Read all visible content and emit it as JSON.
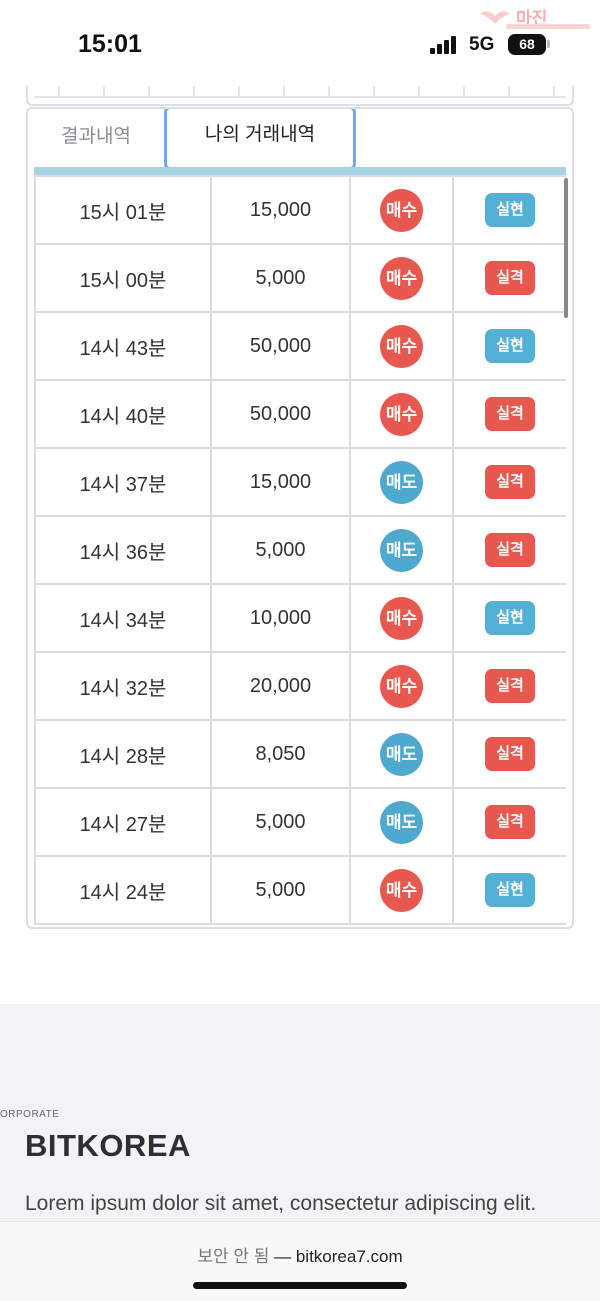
{
  "status_bar": {
    "time": "15:01",
    "network": "5G",
    "battery": "68"
  },
  "watermark": {
    "text": "마진"
  },
  "tabs": [
    {
      "label": "결과내역",
      "active": false
    },
    {
      "label": "나의 거래내역",
      "active": true
    }
  ],
  "rows": [
    {
      "time": "15시 01분",
      "amount": "15,000",
      "type": "매수",
      "result": "실현"
    },
    {
      "time": "15시 00분",
      "amount": "5,000",
      "type": "매수",
      "result": "실격"
    },
    {
      "time": "14시 43분",
      "amount": "50,000",
      "type": "매수",
      "result": "실현"
    },
    {
      "time": "14시 40분",
      "amount": "50,000",
      "type": "매수",
      "result": "실격"
    },
    {
      "time": "14시 37분",
      "amount": "15,000",
      "type": "매도",
      "result": "실격"
    },
    {
      "time": "14시 36분",
      "amount": "5,000",
      "type": "매도",
      "result": "실격"
    },
    {
      "time": "14시 34분",
      "amount": "10,000",
      "type": "매수",
      "result": "실현"
    },
    {
      "time": "14시 32분",
      "amount": "20,000",
      "type": "매수",
      "result": "실격"
    },
    {
      "time": "14시 28분",
      "amount": "8,050",
      "type": "매도",
      "result": "실격"
    },
    {
      "time": "14시 27분",
      "amount": "5,000",
      "type": "매도",
      "result": "실격"
    },
    {
      "time": "14시 24분",
      "amount": "5,000",
      "type": "매수",
      "result": "실현"
    }
  ],
  "colors": {
    "buy": "#e8584f",
    "sell": "#4fa8cd",
    "win": "#55b0d6",
    "lose": "#e8584f",
    "active_tab_border": "#74a9e6"
  },
  "footer": {
    "corp_label": "ORPORATE",
    "brand": "BITKOREA",
    "description": "Lorem ipsum dolor sit amet, consectetur adipiscing elit."
  },
  "browser": {
    "security_label": "보안 안 됨",
    "separator": "—",
    "domain": "bitkorea7.com"
  }
}
